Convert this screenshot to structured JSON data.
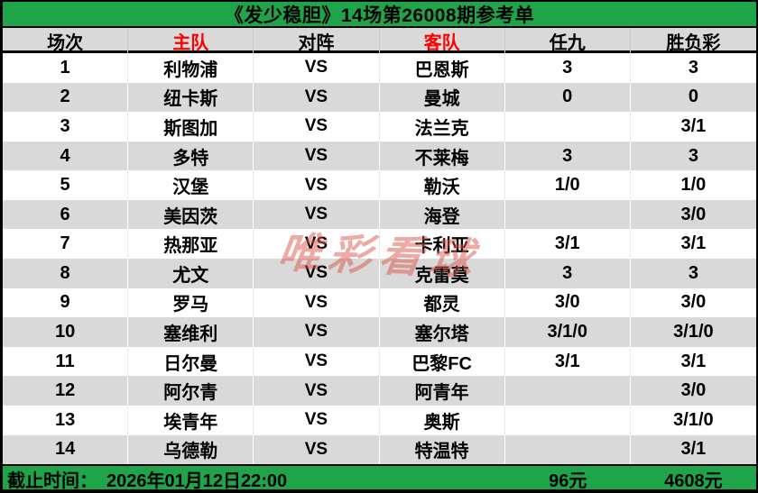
{
  "title": "《发少稳胆》14场第26008期参考单",
  "columns": [
    {
      "label": "场次",
      "red": false
    },
    {
      "label": "主队",
      "red": true
    },
    {
      "label": "对阵",
      "red": false
    },
    {
      "label": "客队",
      "red": true
    },
    {
      "label": "任九",
      "red": false
    },
    {
      "label": "胜负彩",
      "red": false
    }
  ],
  "rows": [
    {
      "no": "1",
      "home": "利物浦",
      "vs": "VS",
      "away": "巴恩斯",
      "renjiu": "3",
      "sfc": "3"
    },
    {
      "no": "2",
      "home": "纽卡斯",
      "vs": "VS",
      "away": "曼城",
      "renjiu": "0",
      "sfc": "0"
    },
    {
      "no": "3",
      "home": "斯图加",
      "vs": "VS",
      "away": "法兰克",
      "renjiu": "",
      "sfc": "3/1"
    },
    {
      "no": "4",
      "home": "多特",
      "vs": "VS",
      "away": "不莱梅",
      "renjiu": "3",
      "sfc": "3"
    },
    {
      "no": "5",
      "home": "汉堡",
      "vs": "VS",
      "away": "勒沃",
      "renjiu": "1/0",
      "sfc": "1/0"
    },
    {
      "no": "6",
      "home": "美因茨",
      "vs": "VS",
      "away": "海登",
      "renjiu": "",
      "sfc": "3/0"
    },
    {
      "no": "7",
      "home": "热那亚",
      "vs": "VS",
      "away": "卡利亚",
      "renjiu": "3/1",
      "sfc": "3/1"
    },
    {
      "no": "8",
      "home": "尤文",
      "vs": "VS",
      "away": "克雷莫",
      "renjiu": "3",
      "sfc": "3"
    },
    {
      "no": "9",
      "home": "罗马",
      "vs": "VS",
      "away": "都灵",
      "renjiu": "3/0",
      "sfc": "3/0"
    },
    {
      "no": "10",
      "home": "塞维利",
      "vs": "VS",
      "away": "塞尔塔",
      "renjiu": "3/1/0",
      "sfc": "3/1/0"
    },
    {
      "no": "11",
      "home": "日尔曼",
      "vs": "VS",
      "away": "巴黎FC",
      "renjiu": "3/1",
      "sfc": "3/1"
    },
    {
      "no": "12",
      "home": "阿尔青",
      "vs": "VS",
      "away": "阿青年",
      "renjiu": "",
      "sfc": "3/0"
    },
    {
      "no": "13",
      "home": "埃青年",
      "vs": "VS",
      "away": "奥斯",
      "renjiu": "",
      "sfc": "3/1/0"
    },
    {
      "no": "14",
      "home": "乌德勒",
      "vs": "VS",
      "away": "特温特",
      "renjiu": "",
      "sfc": "3/1"
    }
  ],
  "footer": {
    "deadline_label": "截止时间：",
    "deadline_value": "2026年01月12日22:00",
    "renjiu_price": "96元",
    "sfc_price": "4608元"
  },
  "watermark": "唯彩看球",
  "colors": {
    "green": "#1FA44A",
    "row_alt": "#D9D9D9",
    "header_red": "#FF0000",
    "watermark": "#DB534A"
  }
}
